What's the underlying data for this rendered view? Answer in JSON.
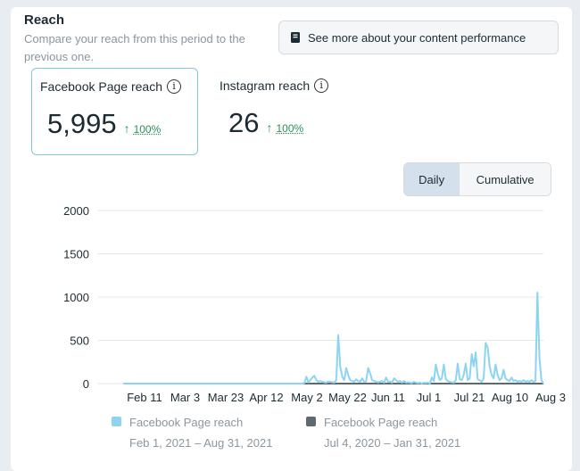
{
  "section": {
    "title": "Reach",
    "description": "Compare your reach from this period to the previous one."
  },
  "performance_button": {
    "label": "See more about your content performance",
    "icon": "book-icon"
  },
  "metrics": [
    {
      "label": "Facebook Page reach",
      "value": "5,995",
      "change": "100%",
      "direction": "up"
    },
    {
      "label": "Instagram reach",
      "value": "26",
      "change": "100%",
      "direction": "up"
    }
  ],
  "toggle": {
    "options": [
      "Daily",
      "Cumulative"
    ],
    "selected": "Daily"
  },
  "colors": {
    "current_series": "#8dd3f2",
    "previous_series": "#5f6a70",
    "up_change": "#2e8f5a",
    "selected_card_border": "#7fc8e0"
  },
  "chart_data": {
    "type": "line",
    "ylim": [
      0,
      2000
    ],
    "y_ticks": [
      "2000",
      "1500",
      "1000",
      "500",
      "0"
    ],
    "x_tick_labels": [
      "Feb 11",
      "Mar 3",
      "Mar 23",
      "Apr 12",
      "May 2",
      "May 22",
      "Jun 11",
      "Jul 1",
      "Jul 21",
      "Aug 10",
      "Aug 3"
    ],
    "grid": true,
    "series": [
      {
        "name": "Facebook Page reach",
        "period": "Feb 1, 2021 – Aug 31, 2021",
        "values": [
          0,
          0,
          0,
          0,
          0,
          0,
          0,
          0,
          0,
          0,
          0,
          0,
          0,
          0,
          0,
          0,
          0,
          0,
          0,
          0,
          0,
          0,
          0,
          0,
          0,
          0,
          0,
          0,
          0,
          0,
          0,
          0,
          0,
          0,
          0,
          0,
          0,
          0,
          0,
          0,
          0,
          0,
          0,
          0,
          0,
          0,
          0,
          0,
          0,
          0,
          0,
          0,
          0,
          0,
          0,
          0,
          0,
          0,
          0,
          0,
          0,
          0,
          0,
          0,
          0,
          0,
          0,
          0,
          0,
          0,
          0,
          0,
          0,
          0,
          0,
          0,
          0,
          0,
          0,
          0,
          0,
          0,
          0,
          0,
          0,
          0,
          0,
          0,
          0,
          0,
          0,
          5,
          80,
          15,
          40,
          70,
          90,
          40,
          20,
          30,
          20,
          15,
          10,
          25,
          20,
          15,
          10,
          40,
          560,
          200,
          80,
          40,
          180,
          100,
          40,
          30,
          20,
          50,
          30,
          20,
          60,
          20,
          25,
          180,
          120,
          40,
          30,
          20,
          15,
          20,
          30,
          10,
          70,
          20,
          25,
          10,
          60,
          40,
          20,
          30,
          10,
          30,
          10,
          15,
          10,
          5,
          20,
          10,
          5,
          10,
          0,
          10,
          5,
          10,
          0,
          70,
          30,
          220,
          110,
          40,
          60,
          220,
          50,
          30,
          20,
          15,
          10,
          40,
          230,
          50,
          40,
          100,
          230,
          40,
          60,
          340,
          200,
          360,
          50,
          40,
          20,
          60,
          470,
          420,
          200,
          100,
          60,
          220,
          100,
          40,
          60,
          160,
          60,
          40,
          30,
          70,
          30,
          40,
          20,
          30,
          20,
          40,
          20,
          30,
          20,
          40,
          20,
          30,
          1050,
          300,
          40,
          0
        ]
      },
      {
        "name": "Facebook Page reach",
        "period": "Jul 4, 2020 – Jan 31, 2021",
        "values": [
          0,
          0,
          0,
          0,
          0,
          0,
          0,
          0,
          0,
          0,
          0,
          0,
          0,
          0,
          0,
          0,
          0,
          0,
          0,
          0,
          0,
          0,
          0,
          0,
          0,
          0,
          0,
          0,
          0,
          0,
          0,
          0,
          0,
          0,
          0,
          0,
          0,
          0,
          0,
          0,
          0,
          0,
          0,
          0,
          0,
          0,
          0,
          0,
          0,
          0,
          0,
          0,
          0,
          0,
          0,
          0,
          0,
          0,
          0,
          0,
          0,
          0,
          0,
          0,
          0,
          0,
          0,
          0,
          0,
          0,
          0,
          0,
          0,
          0,
          0,
          0,
          0,
          0,
          0,
          0,
          0,
          0,
          0,
          0,
          0,
          0,
          0,
          0,
          0,
          0,
          0,
          0,
          0,
          0,
          0,
          0,
          0,
          0,
          0,
          0,
          0,
          0,
          0,
          0,
          0,
          0,
          0,
          0,
          0,
          0,
          0,
          0,
          0,
          0,
          0,
          0,
          0,
          0,
          0,
          0,
          0,
          0,
          0,
          0,
          0,
          0,
          0,
          0,
          0,
          0,
          0,
          0,
          0,
          0,
          0,
          0,
          0,
          0,
          0,
          0,
          0,
          0,
          0,
          0,
          0,
          0,
          0,
          0,
          0,
          0,
          0,
          0,
          0,
          0,
          0,
          0,
          0,
          0,
          0,
          0,
          0,
          0,
          0,
          0,
          0,
          0,
          0,
          0,
          0,
          0,
          0,
          0,
          0,
          0,
          0,
          0,
          0,
          0,
          0,
          0,
          0,
          0,
          0,
          0,
          0,
          0,
          0,
          0,
          0,
          0,
          0,
          0,
          0,
          0,
          0,
          0,
          0,
          0,
          0,
          0,
          0,
          0,
          0,
          0,
          0,
          0,
          0,
          0,
          0,
          0,
          0,
          0,
          0,
          0
        ]
      }
    ]
  }
}
